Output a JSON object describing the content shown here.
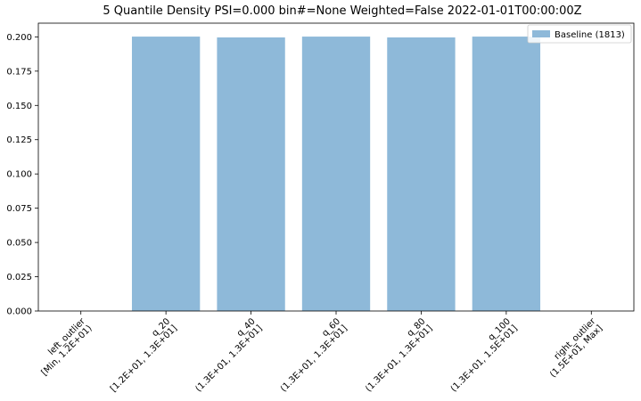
{
  "chart_data": {
    "type": "bar",
    "title": "5 Quantile Density PSI=0.000 bin#=None Weighted=False 2022-01-01T00:00:00Z",
    "xlabel": "",
    "ylabel": "",
    "ylim": [
      0,
      0.21
    ],
    "yticks": [
      "0.000",
      "0.025",
      "0.050",
      "0.075",
      "0.100",
      "0.125",
      "0.150",
      "0.175",
      "0.200"
    ],
    "categories": [
      [
        "left_outlier",
        "[Min, 1.2E+01)"
      ],
      [
        "q_20",
        "[1.2E+01, 1.3E+01]"
      ],
      [
        "q_40",
        "(1.3E+01, 1.3E+01]"
      ],
      [
        "q_60",
        "(1.3E+01, 1.3E+01]"
      ],
      [
        "q_80",
        "(1.3E+01, 1.3E+01]"
      ],
      [
        "q_100",
        "(1.3E+01, 1.5E+01]"
      ],
      [
        "right_outlier",
        "(1.5E+01, Max]"
      ]
    ],
    "series": [
      {
        "name": "Baseline (1813)",
        "color": "#8eb9d9",
        "values": [
          0.0,
          0.2002,
          0.1996,
          0.2002,
          0.1996,
          0.2002,
          0.0
        ]
      }
    ],
    "legend": {
      "placement": "top-right"
    },
    "grid": false
  }
}
